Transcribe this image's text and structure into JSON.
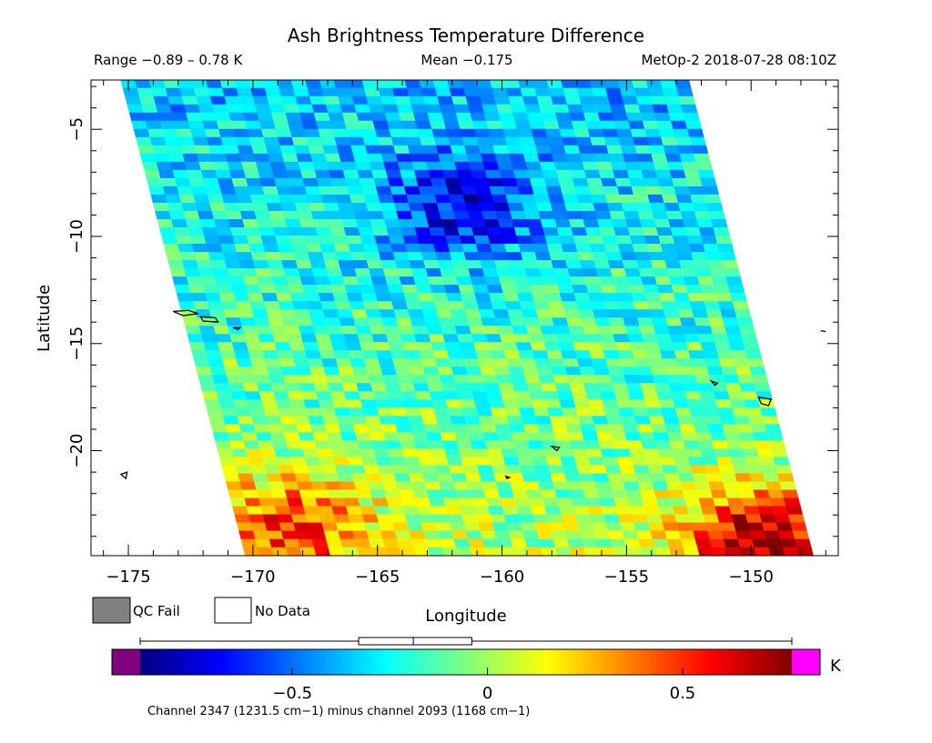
{
  "chart_data": {
    "type": "heatmap",
    "title": "Ash Brightness Temperature Difference",
    "range_text": "Range −0.89 – 0.78 K",
    "mean_text": "Mean −0.175",
    "source_text": "MetOp-2 2018-07-28 08:10Z",
    "xlabel": "Longitude",
    "ylabel": "Latitude",
    "xlim": [
      -176.5,
      -146.5
    ],
    "ylim": [
      -24.9,
      -2.7
    ],
    "x_ticks": [
      -175,
      -170,
      -165,
      -160,
      -155,
      -150
    ],
    "x_tick_labels": [
      "−175",
      "−170",
      "−165",
      "−160",
      "−155",
      "−150"
    ],
    "y_ticks": [
      -5,
      -10,
      -15,
      -20
    ],
    "y_tick_labels": [
      "−5",
      "−10",
      "−15",
      "−20"
    ],
    "range": [
      -0.89,
      0.78
    ],
    "mean": -0.175,
    "units": "K",
    "colormap": "jet",
    "underflow_color": "#800080",
    "overflow_color": "#ff00ff",
    "qc_fail_color": "#808080",
    "colorbar": {
      "min": -0.89,
      "max": 0.78,
      "ticks": [
        -0.5,
        0,
        0.5
      ],
      "tick_labels": [
        "−0.5",
        "0",
        "0.5"
      ],
      "units_label": "K",
      "boxplot": {
        "min": -0.89,
        "q1": -0.33,
        "median": -0.19,
        "q3": -0.04,
        "max": 0.78
      }
    },
    "swath": {
      "top_lon": [
        -175.3,
        -152.5
      ],
      "top_lat": -2.7,
      "bottom_lon": [
        -170.3,
        -147.5
      ],
      "bottom_lat": -24.9
    },
    "field_features": [
      {
        "name": "low-value region",
        "lon": -161.5,
        "lat": -8.7,
        "value": -0.62
      },
      {
        "name": "high-value region",
        "lon": -149.5,
        "lat": -24.2,
        "value": 0.55
      },
      {
        "name": "high-value region",
        "lon": -168.5,
        "lat": -23.5,
        "value": 0.32
      }
    ],
    "caption": "Channel 2347 (1231.5 cm−1) minus channel 2093 (1168 cm−1)"
  },
  "legend": {
    "qc_fail_label": "QC Fail",
    "no_data_label": "No Data"
  }
}
